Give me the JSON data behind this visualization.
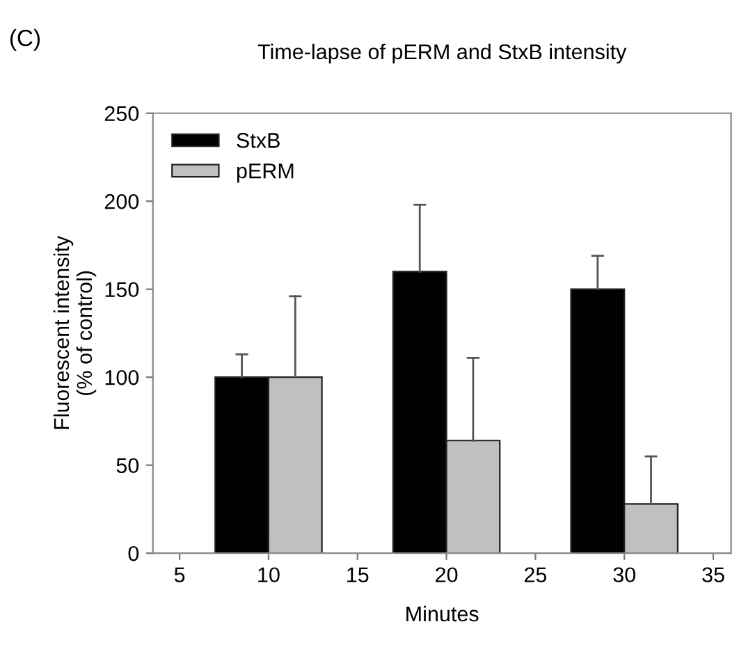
{
  "chart_data": {
    "type": "bar",
    "title": "Time-lapse of pERM and StxB intensity",
    "xlabel": "Minutes",
    "ylabel": "Fluorescent intensity\n(% of control)",
    "annotations": [
      "(C)"
    ],
    "x": [
      10,
      20,
      30
    ],
    "series": [
      {
        "name": "StxB",
        "color": "#000000",
        "values": [
          100,
          160,
          150
        ],
        "errors": [
          [
            100,
            113
          ],
          [
            160,
            198
          ],
          [
            150,
            169
          ]
        ]
      },
      {
        "name": "pERM",
        "color": "#c0c0c0",
        "values": [
          100,
          64,
          28
        ],
        "errors": [
          [
            100,
            146
          ],
          [
            64,
            111
          ],
          [
            28,
            55
          ]
        ]
      }
    ],
    "xlim": [
      3.5,
      36
    ],
    "xticks": [
      5,
      10,
      15,
      20,
      25,
      30,
      35
    ],
    "ylim": [
      0,
      250
    ],
    "yticks": [
      0,
      50,
      100,
      150,
      200,
      250
    ],
    "grid": false,
    "legend": "top left"
  }
}
